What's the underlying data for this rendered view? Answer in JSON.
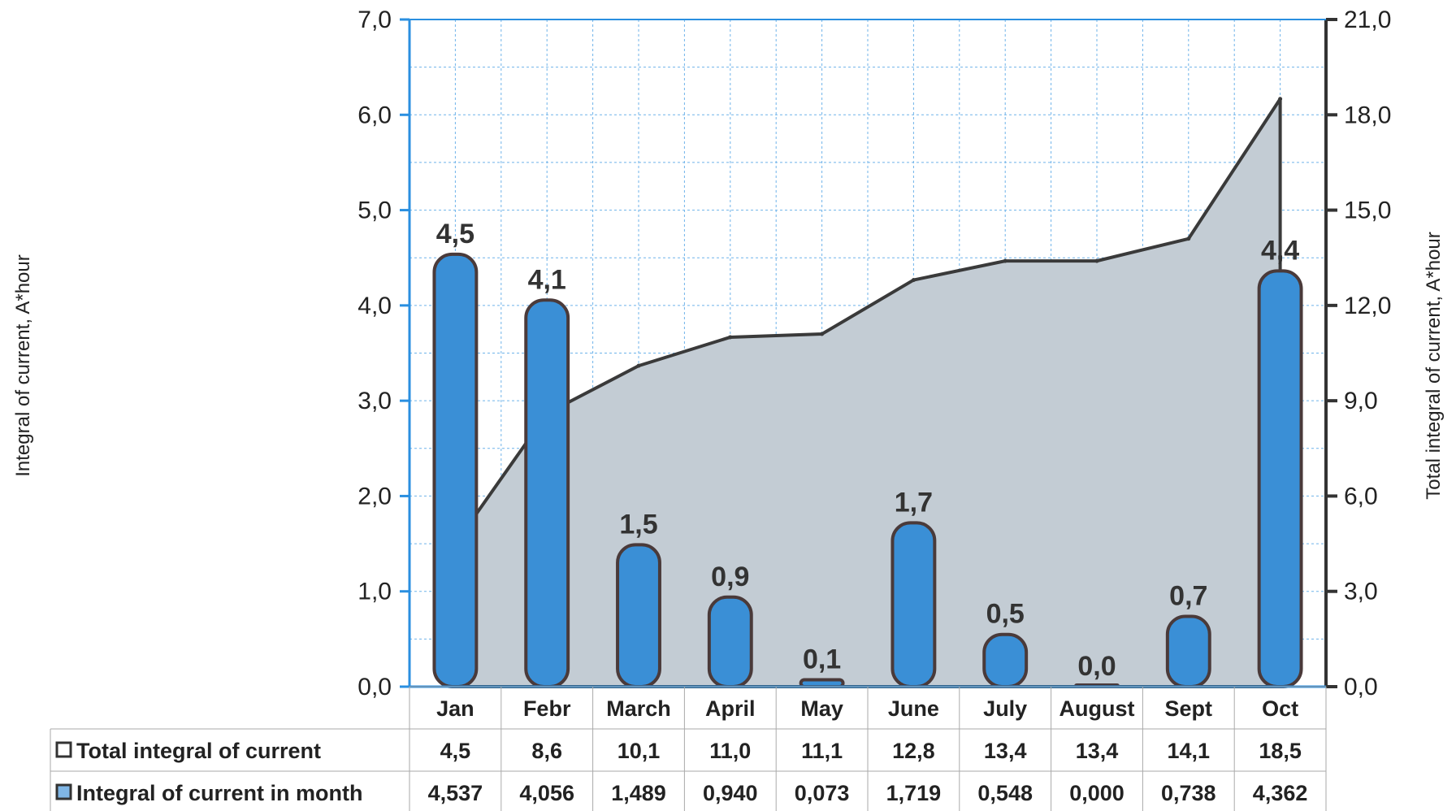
{
  "chart_data": {
    "type": "bar",
    "categories": [
      "Jan",
      "Febr",
      "March",
      "April",
      "May",
      "June",
      "July",
      "August",
      "Sept",
      "Oct"
    ],
    "series": [
      {
        "name": "Integral of current in month",
        "kind": "bar",
        "axis": "left",
        "values": [
          4.537,
          4.056,
          1.489,
          0.94,
          0.073,
          1.719,
          0.548,
          0.0,
          0.738,
          4.362
        ],
        "labels": [
          "4,5",
          "4,1",
          "1,5",
          "0,9",
          "0,1",
          "1,7",
          "0,5",
          "0,0",
          "0,7",
          "4,4"
        ],
        "table_values": [
          "4,537",
          "4,056",
          "1,489",
          "0,940",
          "0,073",
          "1,719",
          "0,548",
          "0,000",
          "0,738",
          "4,362"
        ],
        "color": "#3a8fd6"
      },
      {
        "name": "Total integral of current",
        "kind": "area",
        "axis": "right",
        "values": [
          4.5,
          8.6,
          10.1,
          11.0,
          11.1,
          12.8,
          13.4,
          13.4,
          14.1,
          18.5
        ],
        "table_values": [
          "4,5",
          "8,6",
          "10,1",
          "11,0",
          "11,1",
          "12,8",
          "13,4",
          "13,4",
          "14,1",
          "18,5"
        ],
        "color": "#c3ccd4"
      }
    ],
    "ylabel": "Integral of current, A*hour",
    "y2label": "Total integral of current, A*hour",
    "ylim": [
      0,
      7
    ],
    "y2lim": [
      0,
      21
    ],
    "yticks": [
      "0,0",
      "1,0",
      "2,0",
      "3,0",
      "4,0",
      "5,0",
      "6,0",
      "7,0"
    ],
    "y2ticks": [
      "0,0",
      "3,0",
      "6,0",
      "9,0",
      "12,0",
      "15,0",
      "18,0",
      "21,0"
    ],
    "grid": true,
    "legend": "data-table-below"
  }
}
